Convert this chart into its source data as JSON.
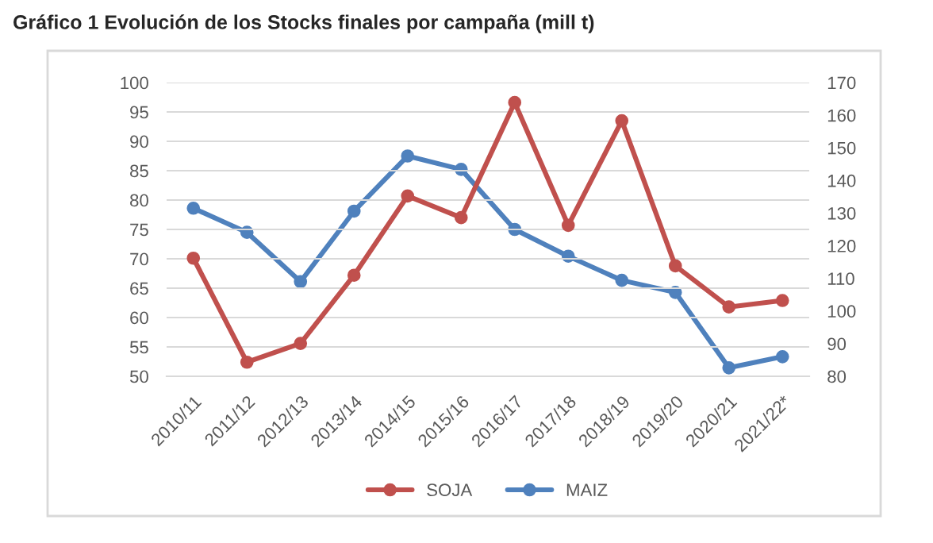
{
  "chart_data": {
    "type": "line",
    "title": "Gráfico 1 Evolución de los Stocks finales por campaña (mill t)",
    "categories": [
      "2010/11",
      "2011/12",
      "2012/13",
      "2013/14",
      "2014/15",
      "2015/16",
      "2016/17",
      "2017/18",
      "2018/19",
      "2019/20",
      "2020/21",
      "2021/22*"
    ],
    "series": [
      {
        "name": "SOJA",
        "color": "#c0504d",
        "values": [
          70.1,
          52.4,
          55.6,
          67.2,
          80.7,
          77.0,
          96.6,
          75.7,
          93.5,
          68.8,
          61.8,
          62.9
        ]
      },
      {
        "name": "MAIZ",
        "color": "#4f81bd",
        "axis": "y2",
        "values": [
          131.5,
          124.1,
          109.0,
          130.6,
          147.5,
          143.4,
          125.0,
          116.8,
          109.4,
          105.7,
          82.6,
          86.0
        ]
      }
    ],
    "ylim": [
      50,
      100
    ],
    "yticks": [
      50,
      55,
      60,
      65,
      70,
      75,
      80,
      85,
      90,
      95,
      100
    ],
    "y2lim": [
      80,
      170
    ],
    "y2ticks": [
      80,
      90,
      100,
      110,
      120,
      130,
      140,
      150,
      160,
      170
    ],
    "grid": "y",
    "legend": "bottom",
    "marker": "circle",
    "line_style": "solid"
  }
}
